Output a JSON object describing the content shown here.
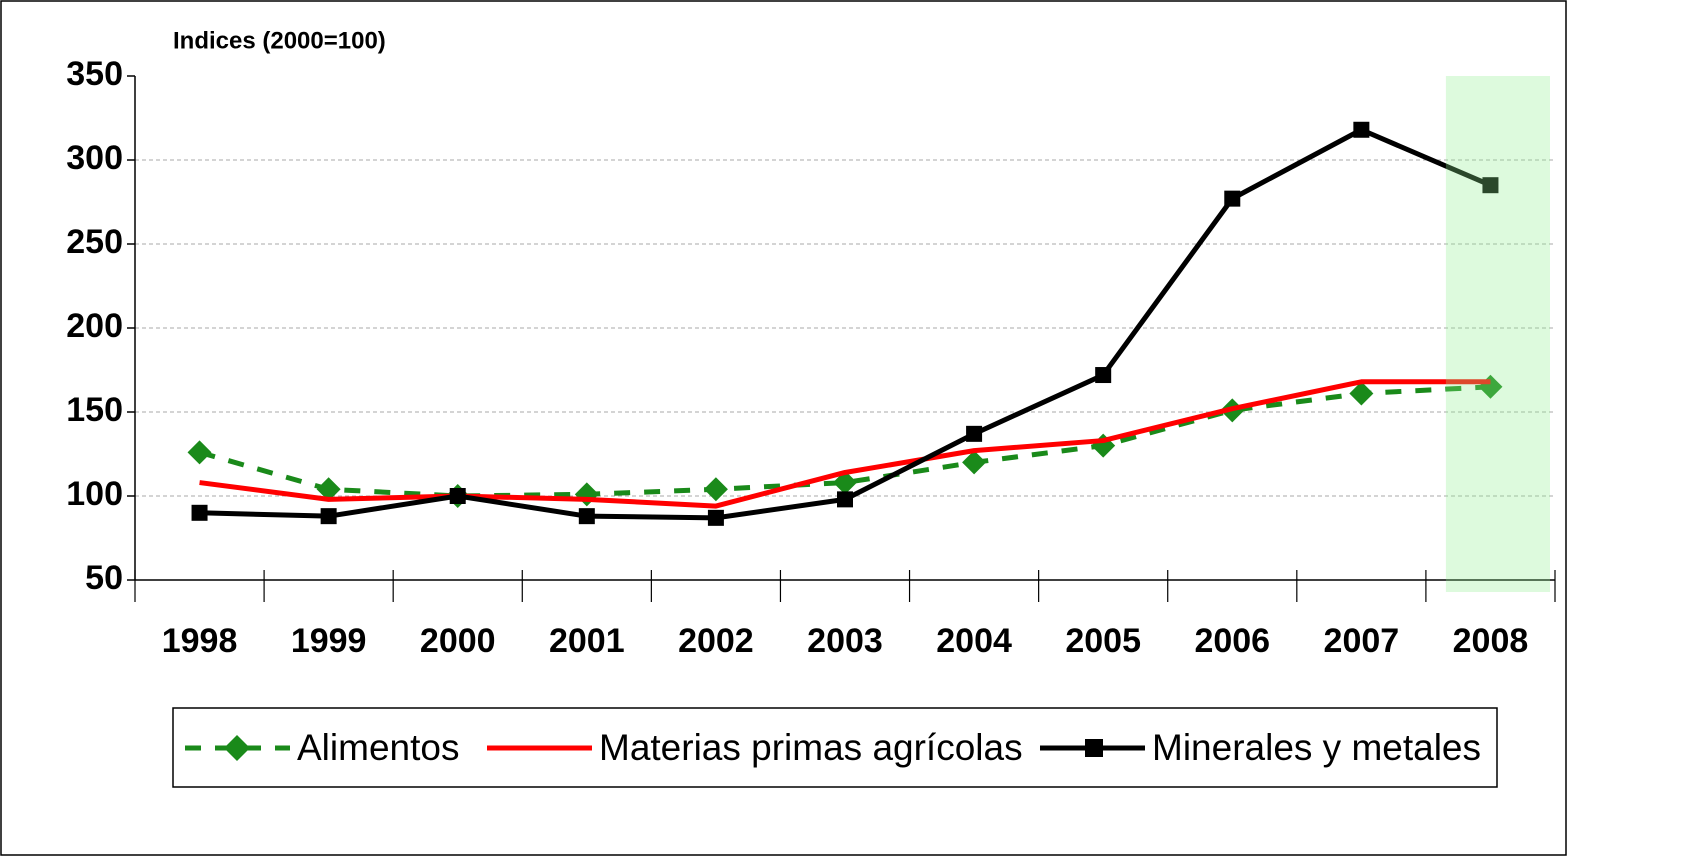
{
  "chart_data": {
    "type": "line",
    "y_label": "Indices (2000=100)",
    "categories": [
      "1998",
      "1999",
      "2000",
      "2001",
      "2002",
      "2003",
      "2004",
      "2005",
      "2006",
      "2007",
      "2008"
    ],
    "series": [
      {
        "name": "Alimentos",
        "color": "#1a8a1a",
        "values": [
          126,
          104,
          100,
          101,
          104,
          108,
          120,
          130,
          151,
          161,
          165
        ]
      },
      {
        "name": "Materias primas agrícolas",
        "color": "#ff0000",
        "values": [
          108,
          98,
          100,
          98,
          94,
          114,
          127,
          133,
          152,
          168,
          168
        ]
      },
      {
        "name": "Minerales y metales",
        "color": "#000000",
        "values": [
          90,
          88,
          100,
          88,
          87,
          98,
          137,
          172,
          277,
          318,
          285
        ]
      }
    ],
    "ylim": [
      50,
      350
    ],
    "yticks": [
      50,
      100,
      150,
      200,
      250,
      300,
      350
    ],
    "grid": true,
    "legend": "bottom"
  }
}
